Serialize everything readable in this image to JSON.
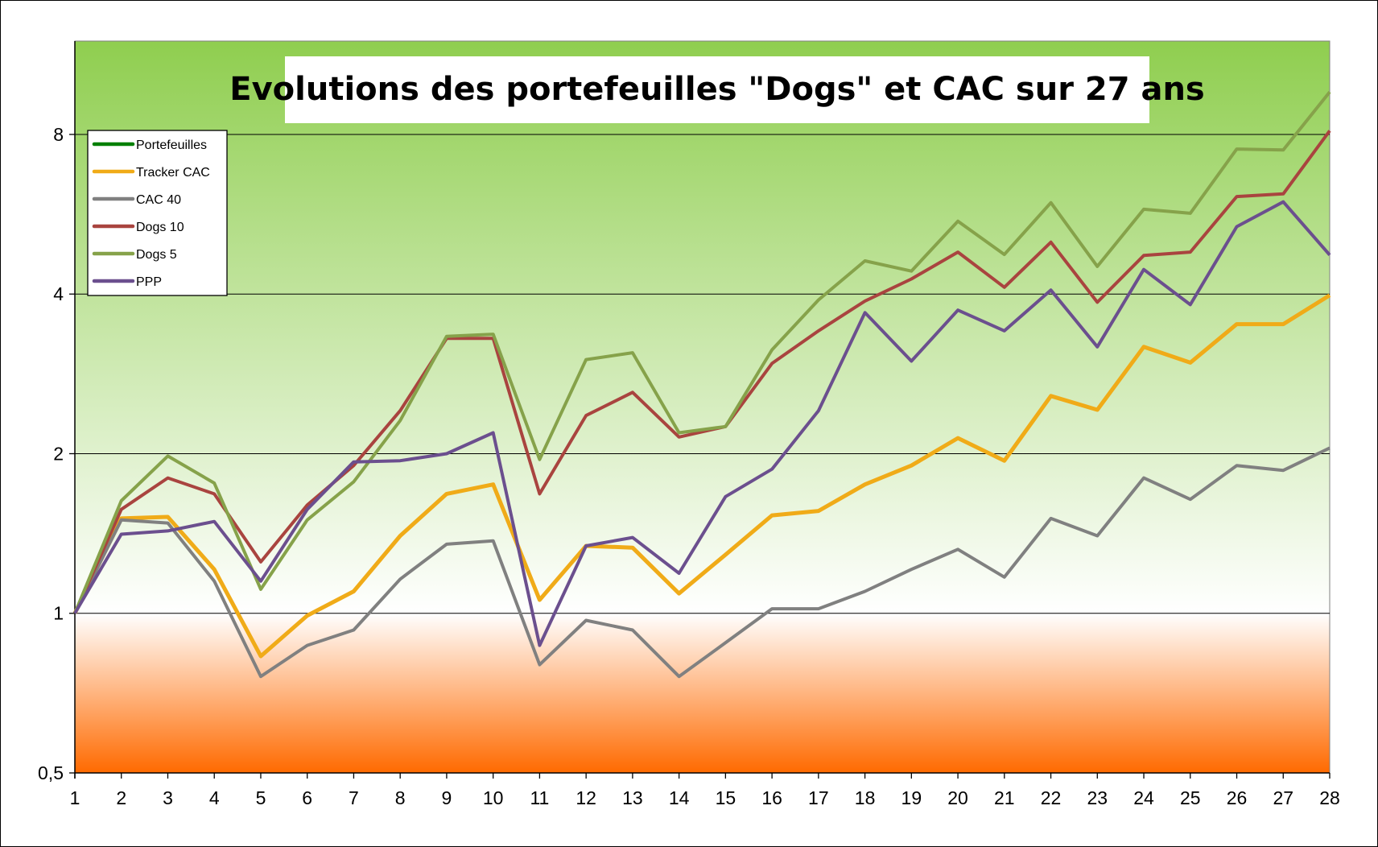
{
  "chart_data": {
    "type": "line",
    "title": "Evolutions des portefeuilles \"Dogs\" et CAC sur  27 ans",
    "xlabel": "",
    "ylabel": "",
    "x": [
      1,
      2,
      3,
      4,
      5,
      6,
      7,
      8,
      9,
      10,
      11,
      12,
      13,
      14,
      15,
      16,
      17,
      18,
      19,
      20,
      21,
      22,
      23,
      24,
      25,
      26,
      27,
      28
    ],
    "y_scale": "log2",
    "ylim": [
      0.5,
      12
    ],
    "y_ticks": [
      0.5,
      1,
      2,
      4,
      8
    ],
    "y_tick_labels": [
      "0,5",
      "1",
      "2",
      "4",
      "8"
    ],
    "grid": "horizontal major",
    "legend_placement": "top-left",
    "background": {
      "top": "#8fce4f",
      "at_one": "#ffffff",
      "bottom": "#ff6a00"
    },
    "legend_entries": [
      {
        "name": "Portefeuilles",
        "color": "#007f00"
      },
      {
        "name": "Tracker CAC",
        "color": "#f0ab18"
      },
      {
        "name": "CAC 40",
        "color": "#808080"
      },
      {
        "name": "Dogs 10",
        "color": "#a9443f"
      },
      {
        "name": "Dogs 5",
        "color": "#86a24a"
      },
      {
        "name": "PPP",
        "color": "#6b4f8e"
      }
    ],
    "series": [
      {
        "name": "Tracker CAC",
        "color": "#f0ab18",
        "width": 5,
        "values": [
          1,
          1.51,
          1.52,
          1.21,
          0.83,
          0.99,
          1.1,
          1.4,
          1.68,
          1.75,
          1.06,
          1.34,
          1.33,
          1.09,
          1.29,
          1.53,
          1.56,
          1.75,
          1.9,
          2.14,
          1.94,
          2.57,
          2.42,
          3.18,
          2.97,
          3.51,
          3.51,
          3.98
        ]
      },
      {
        "name": "CAC 40",
        "color": "#808080",
        "width": 4,
        "values": [
          1,
          1.5,
          1.48,
          1.15,
          0.76,
          0.87,
          0.93,
          1.16,
          1.35,
          1.37,
          0.8,
          0.97,
          0.93,
          0.76,
          0.88,
          1.02,
          1.02,
          1.1,
          1.21,
          1.32,
          1.17,
          1.51,
          1.4,
          1.8,
          1.64,
          1.9,
          1.86,
          2.05
        ]
      },
      {
        "name": "Dogs 10",
        "color": "#a9443f",
        "width": 4,
        "values": [
          1,
          1.57,
          1.8,
          1.68,
          1.25,
          1.6,
          1.9,
          2.41,
          3.3,
          3.3,
          1.68,
          2.36,
          2.61,
          2.15,
          2.25,
          2.96,
          3.41,
          3.88,
          4.27,
          4.8,
          4.12,
          5.01,
          3.86,
          4.73,
          4.8,
          6.11,
          6.18,
          8.13
        ]
      },
      {
        "name": "Dogs 5",
        "color": "#86a24a",
        "width": 4,
        "values": [
          1,
          1.63,
          1.98,
          1.76,
          1.11,
          1.5,
          1.77,
          2.31,
          3.33,
          3.36,
          1.95,
          3.01,
          3.1,
          2.19,
          2.25,
          3.14,
          3.9,
          4.62,
          4.42,
          5.49,
          4.75,
          5.95,
          4.51,
          5.78,
          5.68,
          7.51,
          7.48,
          9.62
        ]
      },
      {
        "name": "PPP",
        "color": "#6b4f8e",
        "width": 4,
        "values": [
          1,
          1.41,
          1.43,
          1.49,
          1.15,
          1.57,
          1.93,
          1.94,
          2.0,
          2.19,
          0.87,
          1.34,
          1.39,
          1.19,
          1.66,
          1.87,
          2.41,
          3.69,
          2.99,
          3.73,
          3.41,
          4.07,
          3.18,
          4.45,
          3.82,
          5.36,
          5.97,
          4.74
        ]
      }
    ]
  }
}
